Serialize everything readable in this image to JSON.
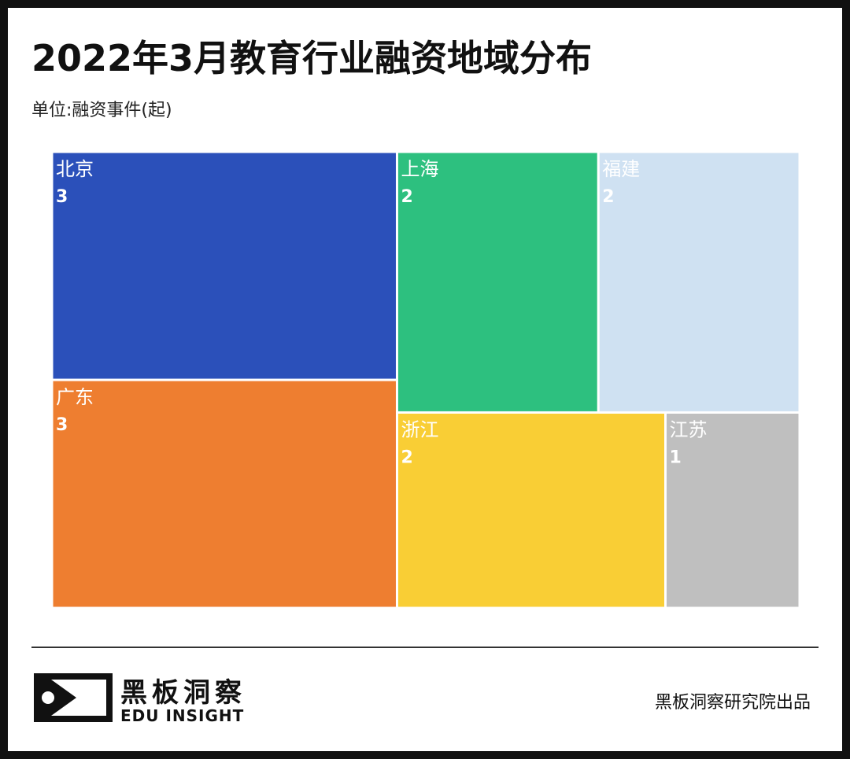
{
  "title": "2022年3月教育行业融资地域分布",
  "subtitle": "单位:融资事件(起)",
  "chart_data": {
    "type": "treemap",
    "title": "2022年3月教育行业融资地域分布",
    "unit": "单位:融资事件(起)",
    "items": [
      {
        "name": "北京",
        "value": 3,
        "color": "#2B50BA"
      },
      {
        "name": "广东",
        "value": 3,
        "color": "#EE7E30"
      },
      {
        "name": "上海",
        "value": 2,
        "color": "#2DC07F"
      },
      {
        "name": "福建",
        "value": 2,
        "color": "#CFE1F2"
      },
      {
        "name": "浙江",
        "value": 2,
        "color": "#F9CE35"
      },
      {
        "name": "江苏",
        "value": 1,
        "color": "#BFBFBF"
      }
    ]
  },
  "footer": {
    "brand_cn": "黑板洞察",
    "brand_en": "EDU INSIGHT",
    "credit": "黑板洞察研究院出品"
  },
  "icons": {
    "logo": "edu-insight-logo-icon"
  }
}
